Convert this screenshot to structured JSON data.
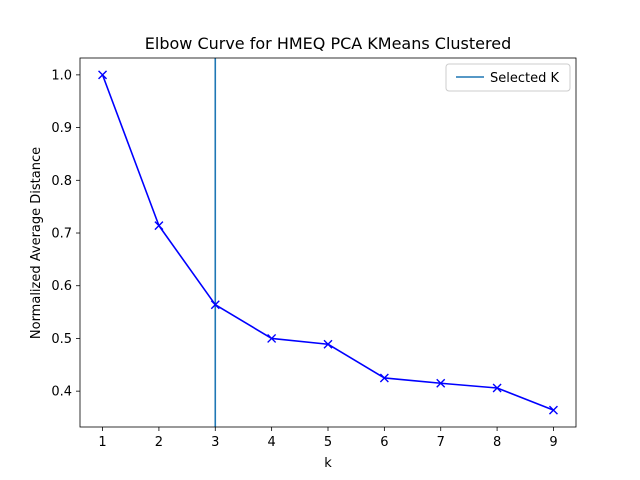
{
  "chart_data": {
    "type": "line",
    "title": "Elbow Curve for HMEQ PCA KMeans Clustered",
    "xlabel": "k",
    "ylabel": "Normalized Average Distance",
    "x": [
      1,
      2,
      3,
      4,
      5,
      6,
      7,
      8,
      9
    ],
    "series": [
      {
        "values": [
          1.0,
          0.714,
          0.564,
          0.5,
          0.489,
          0.425,
          0.415,
          0.406,
          0.364
        ],
        "color": "#0000ff",
        "marker": "x"
      }
    ],
    "vline": {
      "name": "Selected K",
      "x": 3,
      "color": "#1f77b4"
    },
    "xticks": [
      "1",
      "2",
      "3",
      "4",
      "5",
      "6",
      "7",
      "8",
      "9"
    ],
    "yticks": [
      "0.4",
      "0.5",
      "0.6",
      "0.7",
      "0.8",
      "0.9",
      "1.0"
    ],
    "ytick_values": [
      0.4,
      0.5,
      0.6,
      0.7,
      0.8,
      0.9,
      1.0
    ],
    "xlim": [
      0.6,
      9.4
    ],
    "ylim": [
      0.332,
      1.032
    ],
    "grid": false,
    "legend_position": "top-right"
  }
}
